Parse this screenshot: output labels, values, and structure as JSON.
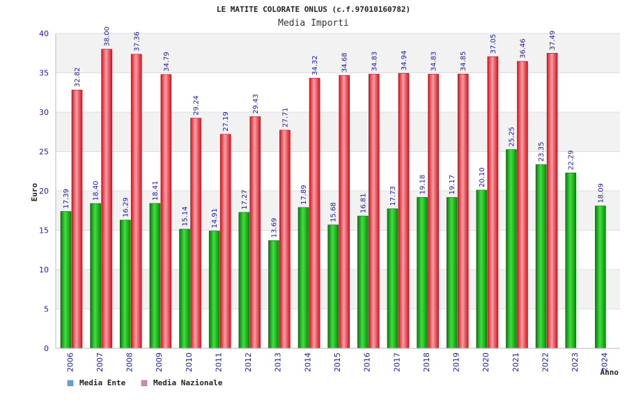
{
  "chart_data": {
    "type": "bar",
    "title": "LE MATITE COLORATE ONLUS (c.f.97010160782)",
    "subtitle": "Media Importi",
    "xlabel": "Anno",
    "ylabel": "Euro",
    "ylim": [
      0,
      40
    ],
    "yticks": [
      0,
      5,
      10,
      15,
      20,
      25,
      30,
      35,
      40
    ],
    "grid": true,
    "legend_position": "bottom-left",
    "categories": [
      "2006",
      "2007",
      "2008",
      "2009",
      "2010",
      "2011",
      "2012",
      "2013",
      "2014",
      "2015",
      "2016",
      "2017",
      "2018",
      "2019",
      "2020",
      "2021",
      "2022",
      "2023",
      "2024"
    ],
    "series": [
      {
        "name": "Media Ente",
        "color": "#18b818",
        "legend_color": "#5aa0e6",
        "values": [
          17.39,
          18.4,
          16.29,
          18.41,
          15.14,
          14.91,
          17.27,
          13.69,
          17.89,
          15.68,
          16.81,
          17.73,
          19.18,
          19.17,
          20.1,
          25.25,
          23.35,
          22.29,
          18.09
        ],
        "labels": [
          "17.39",
          "18.40",
          "16.29",
          "18.41",
          "15.14",
          "14.91",
          "17.27",
          "13.69",
          "17.89",
          "15.68",
          "16.81",
          "17.73",
          "19.18",
          "19.17",
          "20.10",
          "25.25",
          "23.35",
          "22.29",
          "18.09"
        ]
      },
      {
        "name": "Media Nazionale",
        "color": "#e8343c",
        "legend_color": "#e080b0",
        "values": [
          32.82,
          38.0,
          37.36,
          34.79,
          29.24,
          27.19,
          29.43,
          27.71,
          34.32,
          34.68,
          34.83,
          34.94,
          34.83,
          34.85,
          37.05,
          36.46,
          37.49,
          null,
          null
        ],
        "labels": [
          "32.82",
          "38.00",
          "37.36",
          "34.79",
          "29.24",
          "27.19",
          "29.43",
          "27.71",
          "34.32",
          "34.68",
          "34.83",
          "34.94",
          "34.83",
          "34.85",
          "37.05",
          "36.46",
          "37.49",
          null,
          null
        ]
      }
    ]
  }
}
